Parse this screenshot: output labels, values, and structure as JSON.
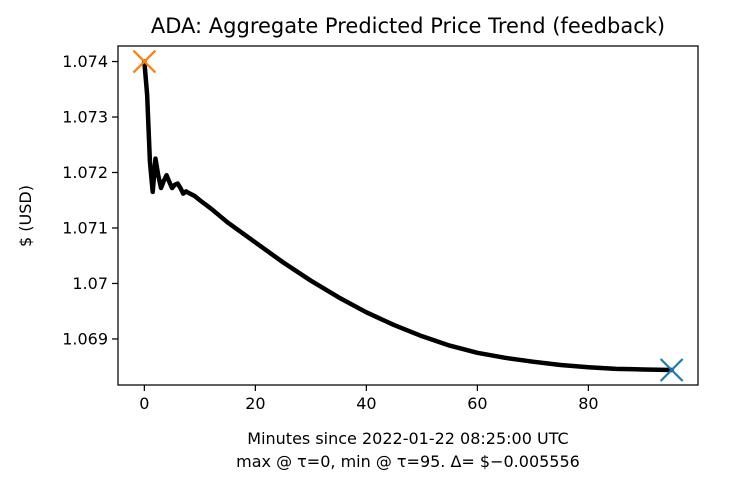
{
  "chart_data": {
    "type": "line",
    "title": "ADA: Aggregate Predicted Price Trend (feedback)",
    "xlabel": "Minutes since 2022-01-22 08:25:00 UTC",
    "xlabel2": "max @ τ=0, min @ τ=95. Δ= $−0.005556",
    "ylabel": "$ (USD)",
    "xlim": [
      -4.75,
      99.75
    ],
    "ylim": [
      1.06817,
      1.07428
    ],
    "xticks": [
      0,
      20,
      40,
      60,
      80
    ],
    "xtick_labels": [
      "0",
      "20",
      "40",
      "60",
      "80"
    ],
    "yticks": [
      1.069,
      1.07,
      1.071,
      1.072,
      1.073,
      1.074
    ],
    "ytick_labels": [
      "1.069",
      "1.07",
      "1.071",
      "1.072",
      "1.073",
      "1.074"
    ],
    "grid": false,
    "series": [
      {
        "color": "#000000",
        "x": [
          0,
          0.5,
          1,
          1.5,
          2,
          2.5,
          3,
          3.5,
          4,
          4.5,
          5,
          5.5,
          6,
          6.5,
          7,
          7.5,
          8,
          9,
          10,
          12,
          15,
          20,
          25,
          30,
          35,
          40,
          45,
          50,
          55,
          60,
          65,
          70,
          75,
          80,
          85,
          90,
          95
        ],
        "y": [
          1.074,
          1.0734,
          1.0722,
          1.07165,
          1.07225,
          1.07195,
          1.07172,
          1.07185,
          1.07195,
          1.07183,
          1.07172,
          1.07178,
          1.0718,
          1.07172,
          1.07162,
          1.07166,
          1.07163,
          1.07158,
          1.0715,
          1.07135,
          1.0711,
          1.07074,
          1.07038,
          1.07005,
          1.06975,
          1.06948,
          1.06925,
          1.06905,
          1.06888,
          1.06875,
          1.06866,
          1.06859,
          1.06853,
          1.06849,
          1.06846,
          1.06845,
          1.06844
        ]
      }
    ],
    "markers": [
      {
        "name": "max",
        "x": 0,
        "y": 1.074,
        "symbol": "x",
        "color": "#ff7f0e"
      },
      {
        "name": "min",
        "x": 95,
        "y": 1.06844,
        "symbol": "x",
        "color": "#1f77b4"
      }
    ]
  }
}
